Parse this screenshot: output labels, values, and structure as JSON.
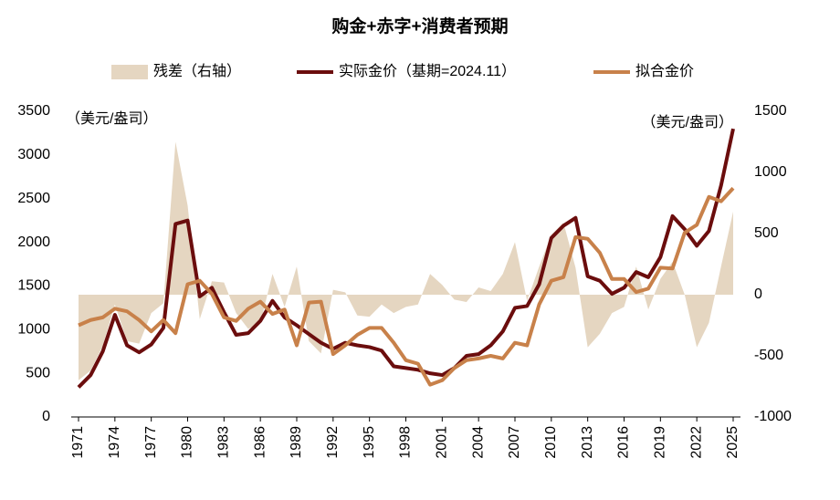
{
  "chart_data": {
    "type": "line",
    "title": "购金+赤字+消费者预期",
    "y_label": "（美元/盎司）",
    "y2_label": "（美元/盎司）",
    "x": [
      1971,
      1972,
      1973,
      1974,
      1975,
      1976,
      1977,
      1978,
      1979,
      1980,
      1981,
      1982,
      1983,
      1984,
      1985,
      1986,
      1987,
      1988,
      1989,
      1990,
      1991,
      1992,
      1993,
      1994,
      1995,
      1996,
      1997,
      1998,
      1999,
      2000,
      2001,
      2002,
      2003,
      2004,
      2005,
      2006,
      2007,
      2008,
      2009,
      2010,
      2011,
      2012,
      2013,
      2014,
      2015,
      2016,
      2017,
      2018,
      2019,
      2020,
      2021,
      2022,
      2023,
      2024,
      2025
    ],
    "xlim": [
      1971,
      2025
    ],
    "xticks": [
      1971,
      1974,
      1977,
      1980,
      1983,
      1986,
      1989,
      1992,
      1995,
      1998,
      2001,
      2004,
      2007,
      2010,
      2013,
      2016,
      2019,
      2022,
      2025
    ],
    "ylim": [
      0,
      3500
    ],
    "yticks": [
      0,
      500,
      1000,
      1500,
      2000,
      2500,
      3000,
      3500
    ],
    "y2lim": [
      -1000,
      1500
    ],
    "y2ticks": [
      -1000,
      -500,
      0,
      500,
      1000,
      1500
    ],
    "legend": "top",
    "series": [
      {
        "name": "残差（右轴）",
        "type": "area",
        "axis": "y2",
        "color": "#e5d6c1",
        "values": [
          -700,
          -620,
          -420,
          -80,
          -380,
          -400,
          -150,
          -70,
          1250,
          730,
          -200,
          110,
          100,
          -150,
          -280,
          -230,
          170,
          -100,
          230,
          -380,
          -480,
          40,
          20,
          -170,
          -180,
          -80,
          -150,
          -100,
          -80,
          170,
          80,
          -40,
          -60,
          60,
          30,
          170,
          430,
          -50,
          230,
          490,
          590,
          220,
          -430,
          -320,
          -150,
          -100,
          230,
          -120,
          130,
          270,
          0,
          -430,
          -230,
          230,
          680
        ]
      },
      {
        "name": "实际金价（基期=2024.11）",
        "type": "line",
        "color": "#6b0d0d",
        "values": [
          340,
          480,
          750,
          1170,
          820,
          740,
          830,
          1020,
          2210,
          2250,
          1380,
          1480,
          1200,
          940,
          960,
          1100,
          1330,
          1140,
          1050,
          950,
          850,
          780,
          850,
          820,
          800,
          760,
          580,
          560,
          540,
          500,
          480,
          560,
          700,
          720,
          820,
          980,
          1250,
          1270,
          1520,
          2050,
          2190,
          2280,
          1610,
          1560,
          1410,
          1480,
          1660,
          1600,
          1830,
          2300,
          2150,
          1960,
          2130,
          2650,
          3300
        ]
      },
      {
        "name": "拟合金价",
        "type": "line",
        "color": "#c8814a",
        "values": [
          1050,
          1110,
          1140,
          1240,
          1210,
          1110,
          980,
          1110,
          960,
          1520,
          1560,
          1410,
          1140,
          1100,
          1240,
          1320,
          1180,
          1230,
          820,
          1310,
          1320,
          720,
          820,
          940,
          1020,
          1020,
          850,
          650,
          610,
          370,
          420,
          560,
          650,
          670,
          700,
          670,
          850,
          820,
          1290,
          1560,
          1600,
          2060,
          2040,
          1880,
          1580,
          1580,
          1430,
          1470,
          1710,
          1700,
          2110,
          2200,
          2520,
          2470,
          2620
        ]
      }
    ]
  }
}
